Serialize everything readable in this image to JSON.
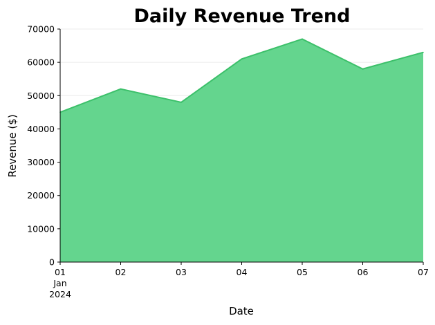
{
  "chart_data": {
    "type": "area",
    "title": "Daily Revenue Trend",
    "xlabel": "Date",
    "ylabel": "Revenue ($)",
    "x": [
      "2024-01-01",
      "2024-01-02",
      "2024-01-03",
      "2024-01-04",
      "2024-01-05",
      "2024-01-06",
      "2024-01-07"
    ],
    "x_tick_labels": [
      "01\nJan\n2024",
      "02",
      "03",
      "04",
      "05",
      "06",
      "07"
    ],
    "values": [
      45000,
      52000,
      48000,
      61000,
      67000,
      58000,
      63000
    ],
    "ylim": [
      0,
      70000
    ],
    "y_ticks": [
      0,
      10000,
      20000,
      30000,
      40000,
      50000,
      60000,
      70000
    ],
    "y_tick_labels": [
      "0",
      "10000",
      "20000",
      "30000",
      "40000",
      "50000",
      "60000",
      "70000"
    ],
    "grid": "horizontal",
    "fill_color": "#5fd48a",
    "line_color": "#3cc06a",
    "grid_color": "#ebebeb"
  }
}
